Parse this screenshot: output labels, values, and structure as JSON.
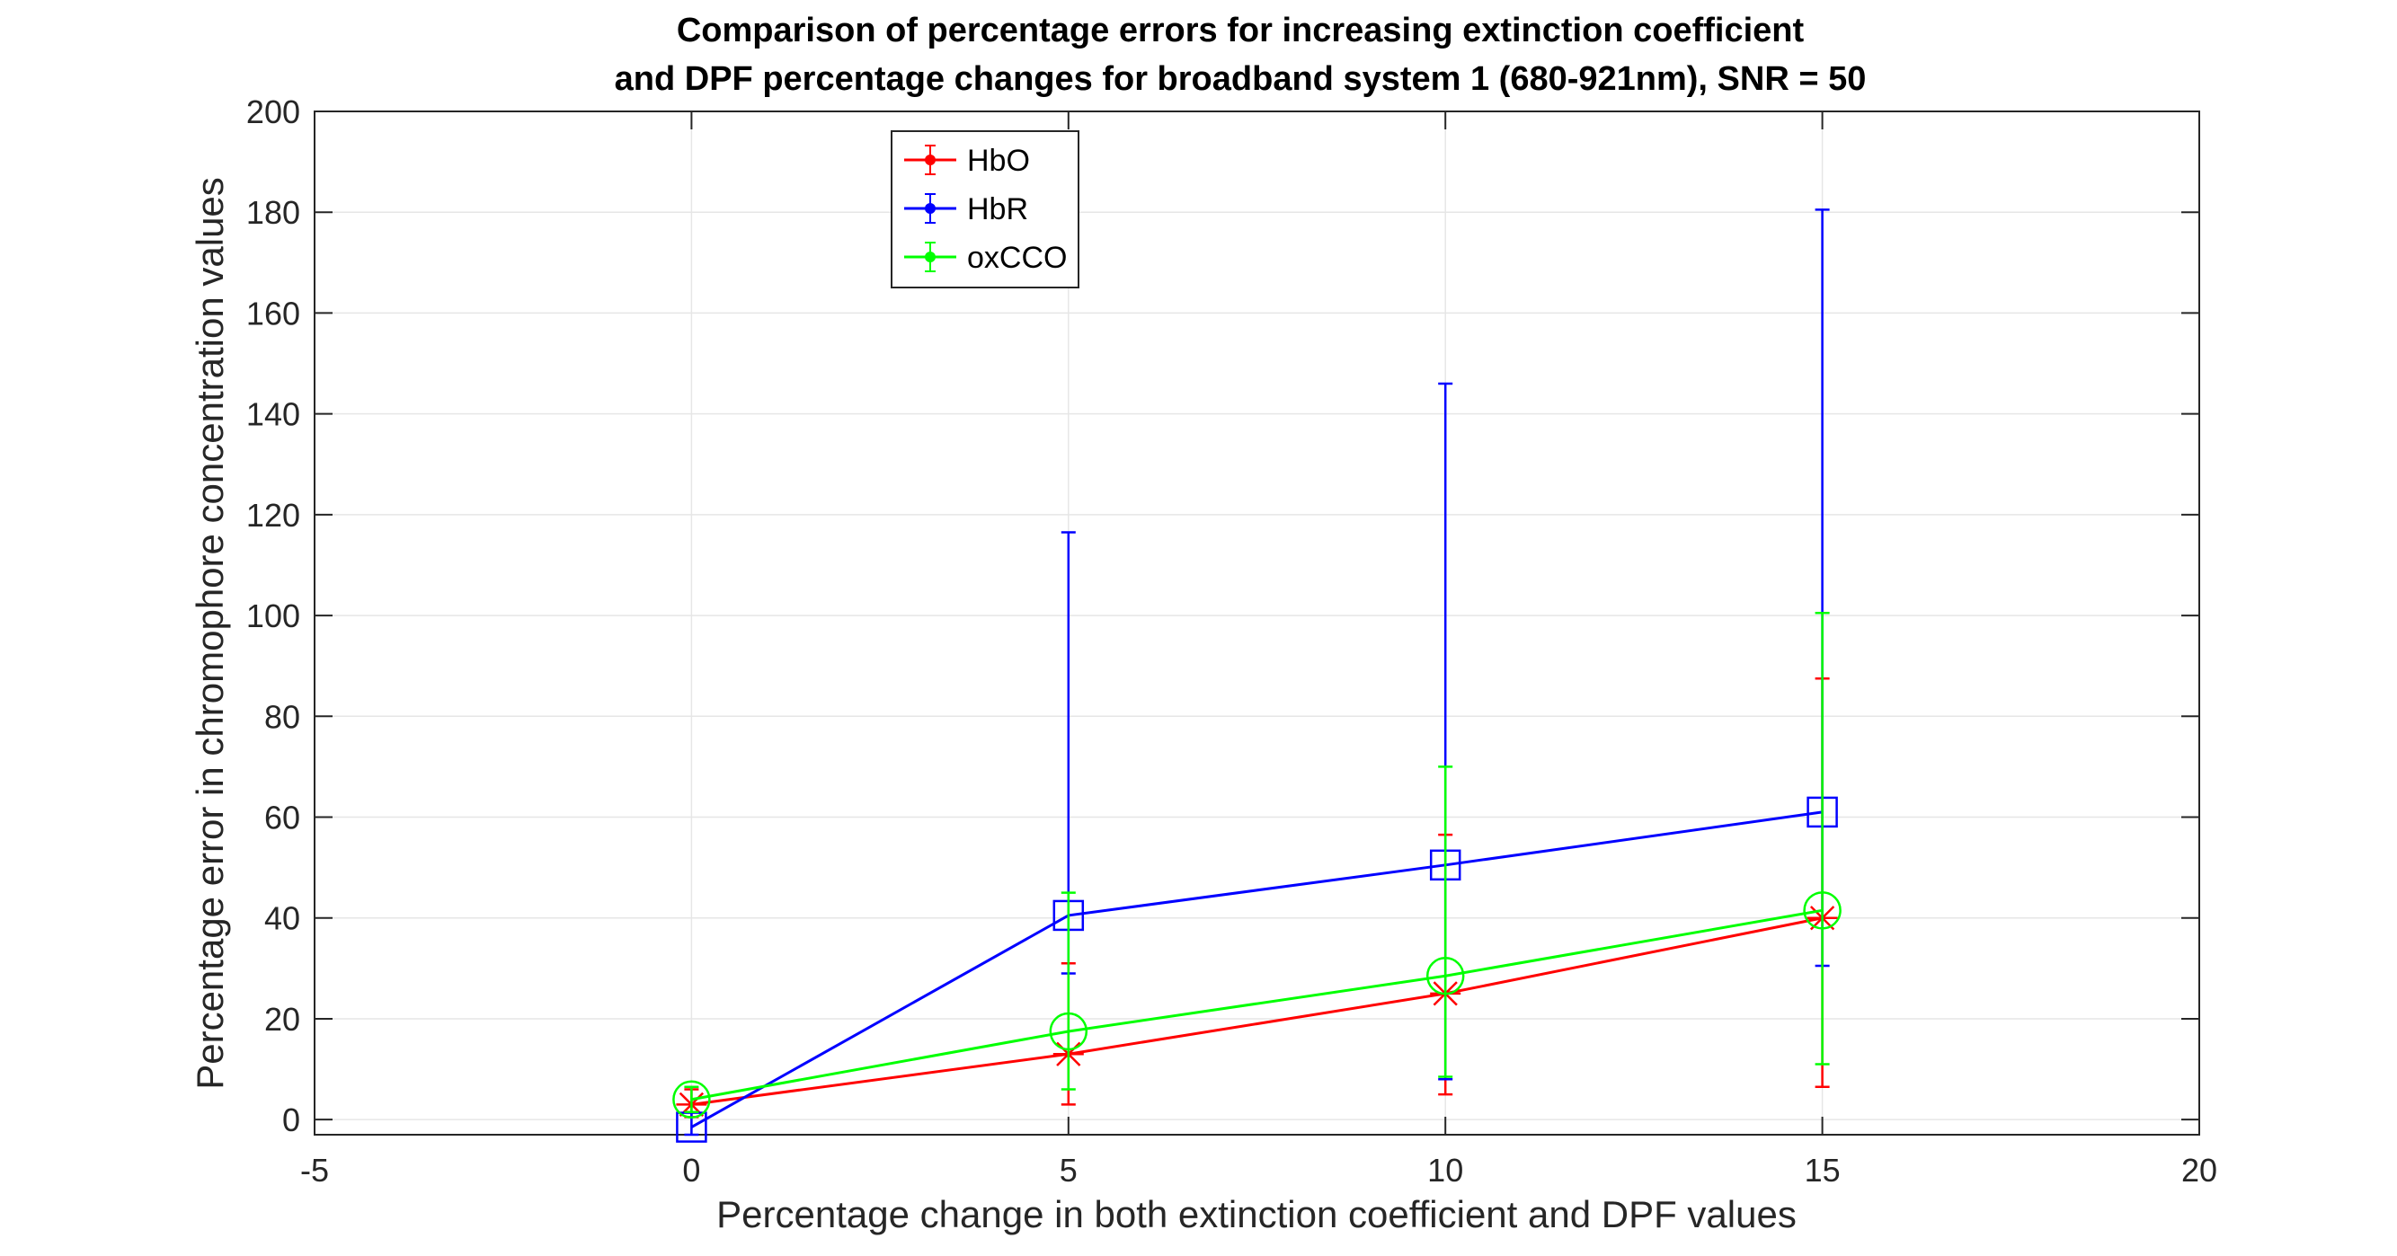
{
  "chart_data": {
    "type": "line",
    "title": [
      "Comparison of percentage errors for increasing extinction coefficient",
      "and DPF percentage changes for broadband system 1 (680-921nm), SNR = 50"
    ],
    "xlabel": "Percentage change in both extinction coefficient and DPF values",
    "ylabel": "Percentage error in chromophore concentration values",
    "xlim": [
      -5,
      20
    ],
    "ylim": [
      -3,
      200
    ],
    "xticks": [
      -5,
      0,
      5,
      10,
      15,
      20
    ],
    "yticks": [
      0,
      20,
      40,
      60,
      80,
      100,
      120,
      140,
      160,
      180,
      200
    ],
    "grid": true,
    "legend_position": "top-left-center",
    "x": [
      0,
      5,
      10,
      15
    ],
    "series": [
      {
        "name": "HbO",
        "color": "#ff0000",
        "marker": "asterisk",
        "values": [
          3,
          13,
          25,
          40
        ],
        "lower": [
          0.5,
          3,
          5,
          6.5
        ],
        "upper": [
          6,
          31,
          56.5,
          87.5
        ]
      },
      {
        "name": "HbR",
        "color": "#0000ff",
        "marker": "square",
        "values": [
          -1.5,
          40.5,
          50.5,
          61
        ],
        "lower": [
          -3,
          29,
          8,
          30.5
        ],
        "upper": [
          1.5,
          116.5,
          146,
          180.5
        ]
      },
      {
        "name": "oxCCO",
        "color": "#00ff00",
        "marker": "circle",
        "values": [
          4,
          17.5,
          28.5,
          41.5
        ],
        "lower": [
          1.5,
          6,
          8.5,
          11
        ],
        "upper": [
          6.5,
          45,
          70,
          100.5
        ]
      }
    ]
  }
}
